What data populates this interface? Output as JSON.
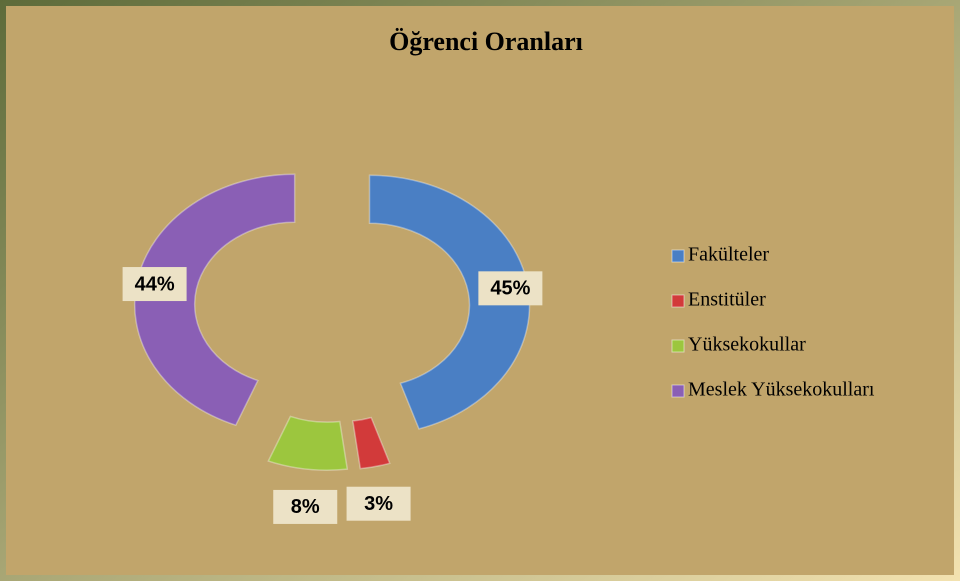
{
  "chart_data": {
    "type": "donut",
    "title": "Öğrenci Oranları",
    "categories": [
      "Fakülteler",
      "Enstitüler",
      "Yüksekokullar",
      "Meslek Yüksekokulları"
    ],
    "values": [
      45,
      3,
      8,
      44
    ],
    "value_labels": [
      "45%",
      "3%",
      "8%",
      "44%"
    ],
    "colors": [
      "#4a7fc4",
      "#d23a3a",
      "#9cc63e",
      "#8a5fb5"
    ],
    "legend": "right"
  }
}
